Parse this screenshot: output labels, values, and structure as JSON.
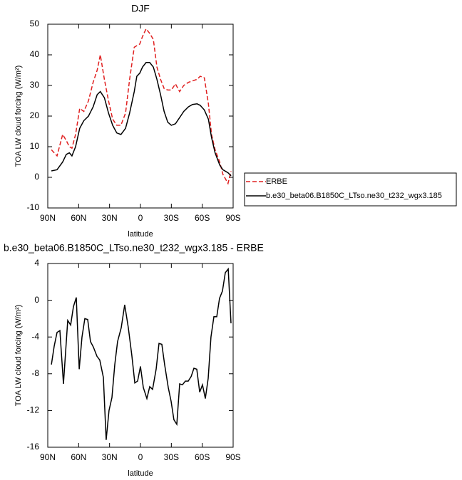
{
  "chart_data": [
    {
      "type": "line",
      "title": "DJF",
      "xlabel": "latitude",
      "ylabel": "TOA LW cloud forcing (W/m²)",
      "xlim": [
        90,
        -90
      ],
      "xticks": [
        {
          "value": 90,
          "label": "90N"
        },
        {
          "value": 60,
          "label": "60N"
        },
        {
          "value": 30,
          "label": "30N"
        },
        0,
        {
          "value": -30,
          "label": "30S"
        },
        {
          "value": -60,
          "label": "60S"
        },
        {
          "value": -90,
          "label": "90S"
        }
      ],
      "ylim": [
        -10,
        50
      ],
      "yticks": [
        -10,
        0,
        10,
        20,
        30,
        40,
        50
      ],
      "legend": "right",
      "x": [
        86.5,
        81,
        75.5,
        72,
        69,
        66.5,
        63,
        59,
        55,
        50.5,
        46,
        42,
        39,
        35,
        31,
        27,
        23,
        19,
        14.5,
        10.5,
        6,
        3.5,
        0.7,
        -2,
        -5.5,
        -9,
        -12.5,
        -16,
        -19.5,
        -23,
        -26.5,
        -30,
        -34,
        -38,
        -42,
        -46.5,
        -50.5,
        -55,
        -58,
        -62,
        -66,
        -69,
        -72.5,
        -77,
        -80,
        -85,
        -88
      ],
      "series": [
        {
          "name": "ERBE",
          "color": "#e02020",
          "dash": true,
          "values": [
            9,
            7,
            14,
            12,
            10,
            9.5,
            14,
            22.5,
            21.5,
            25,
            31,
            35,
            40,
            32,
            25,
            19,
            17,
            17,
            21,
            32,
            42.5,
            43,
            43.5,
            46,
            48.5,
            47,
            45,
            36,
            32,
            29,
            28.5,
            28.5,
            30.5,
            28,
            30,
            31,
            31.5,
            32,
            33,
            32.5,
            24,
            14,
            9,
            5,
            1,
            -2,
            2
          ]
        },
        {
          "name": "b.e30_beta06.B1850C_LTso.ne30_t232_wgx3.185",
          "color": "#000000",
          "dash": false,
          "values": [
            2.1,
            2.5,
            5,
            7.5,
            8,
            7,
            10,
            16,
            18.5,
            20,
            23,
            27,
            28,
            26,
            21,
            17,
            14.5,
            14,
            16,
            21,
            28,
            33,
            34,
            36,
            37.5,
            37.5,
            36,
            32,
            27,
            21.5,
            18,
            17,
            17.5,
            19.5,
            21.5,
            23,
            23.8,
            24,
            23.5,
            22,
            19,
            13,
            8,
            4,
            2.5,
            1.5,
            0.5
          ]
        }
      ]
    },
    {
      "type": "line",
      "title": "b.e30_beta06.B1850C_LTso.ne30_t232_wgx3.185 - ERBE",
      "xlabel": "latitude",
      "ylabel": "TOA LW cloud forcing (W/m²)",
      "xlim": [
        90,
        -90
      ],
      "xticks": [
        {
          "value": 90,
          "label": "90N"
        },
        {
          "value": 60,
          "label": "60N"
        },
        {
          "value": 30,
          "label": "30N"
        },
        0,
        {
          "value": -30,
          "label": "30S"
        },
        {
          "value": -60,
          "label": "60S"
        },
        {
          "value": -90,
          "label": "90S"
        }
      ],
      "ylim": [
        -16,
        4
      ],
      "yticks": [
        -16,
        -12,
        -8,
        -4,
        0,
        4
      ],
      "x": [
        86.5,
        83.8,
        81,
        78.2,
        74.8,
        70.6,
        67.8,
        65.1,
        62.3,
        59.5,
        56.8,
        54,
        51.2,
        48.5,
        45.7,
        42.2,
        39.5,
        36,
        33.3,
        30.5,
        27.7,
        24.9,
        22.2,
        18.7,
        15.3,
        11.8,
        8.4,
        5.5,
        2.8,
        0,
        -2.8,
        -6.2,
        -9,
        -11.8,
        -15.2,
        -18,
        -20.8,
        -23.5,
        -27,
        -29.8,
        -32.5,
        -35.3,
        -38.1,
        -40.8,
        -43.6,
        -46.4,
        -49.2,
        -51.9,
        -54.7,
        -57.5,
        -60.2,
        -63,
        -65.8,
        -68.5,
        -71.3,
        -74.1,
        -76.8,
        -79.6,
        -82.4,
        -85.2,
        -87.9
      ],
      "color": "#000000",
      "values": [
        -7,
        -5,
        -3.5,
        -3.3,
        -9.1,
        -2.2,
        -2.7,
        -0.7,
        0.3,
        -7.5,
        -4,
        -2,
        -2.1,
        -4.5,
        -5.1,
        -6.1,
        -6.5,
        -8.4,
        -15.2,
        -12,
        -10.6,
        -7,
        -4.5,
        -3,
        -0.5,
        -3,
        -6,
        -9,
        -8.8,
        -7.2,
        -9.5,
        -10.7,
        -9.4,
        -9.7,
        -7.5,
        -4.7,
        -4.8,
        -7,
        -9.5,
        -11,
        -13,
        -13.5,
        -9.1,
        -9.2,
        -8.8,
        -8.8,
        -8.3,
        -7.4,
        -7.5,
        -10,
        -9.2,
        -10.7,
        -8.5,
        -4,
        -1.8,
        -1.8,
        0.2,
        1,
        3,
        3.4,
        -2.5
      ]
    }
  ]
}
